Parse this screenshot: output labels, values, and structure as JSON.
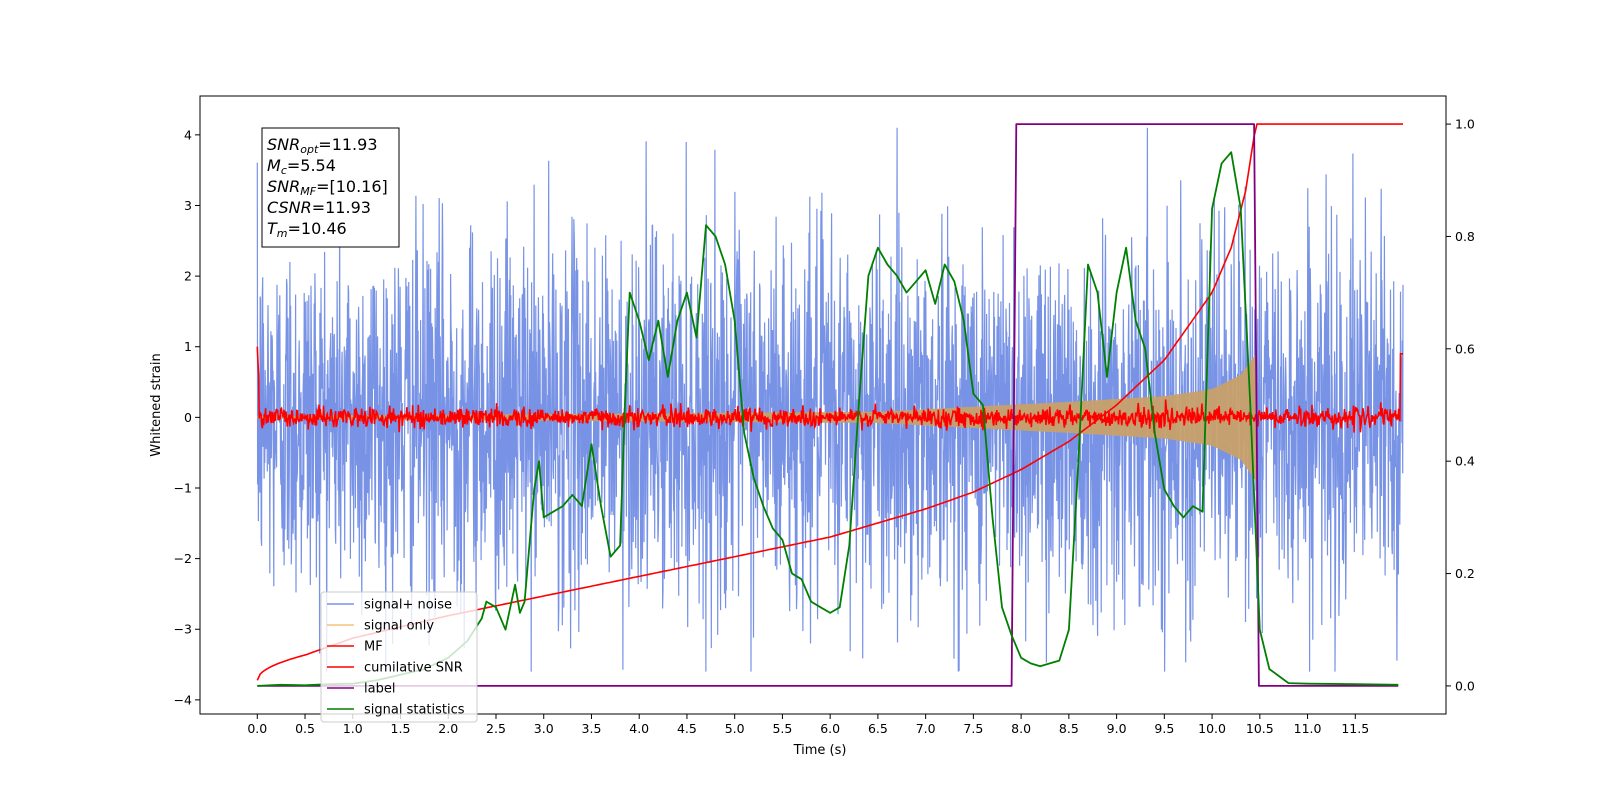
{
  "chart_data": {
    "type": "line",
    "xlabel": "Time (s)",
    "ylabel": "Whitened strain",
    "xlim": [
      -0.6,
      12.45
    ],
    "ylim": [
      -4.2,
      4.55
    ],
    "ylim_right": [
      -0.05,
      1.05
    ],
    "xticks": [
      "0.0",
      "0.5",
      "1.0",
      "1.5",
      "2.0",
      "2.5",
      "3.0",
      "3.5",
      "4.0",
      "4.5",
      "5.0",
      "5.5",
      "6.0",
      "6.5",
      "7.0",
      "7.5",
      "8.0",
      "8.5",
      "9.0",
      "9.5",
      "10.0",
      "10.5",
      "11.0",
      "11.5"
    ],
    "yticks": [
      "4",
      "3",
      "2",
      "1",
      "0",
      "−1",
      "−2",
      "−3",
      "−4"
    ],
    "yticks_right": [
      "1.0",
      "0.8",
      "0.6",
      "0.4",
      "0.2",
      "0.0"
    ],
    "legend_position": "lower-left",
    "info_box": {
      "snr_opt_label": "SNR",
      "snr_opt_sub": "opt",
      "snr_opt_value": "=11.93",
      "mc_label": "M",
      "mc_sub": "c",
      "mc_value": "=5.54",
      "snr_mf_label": "SNR",
      "snr_mf_sub": "MF",
      "snr_mf_value": "=[10.16]",
      "csnr_label": "CSNR",
      "csnr_value": "=11.93",
      "tm_label": "T",
      "tm_sub": "m",
      "tm_value": "=10.46"
    },
    "series": [
      {
        "name": "signal+ noise",
        "color": "#7893e6",
        "axis": "left",
        "noise_amplitude_std": 1.3,
        "x_range": [
          0,
          12
        ]
      },
      {
        "name": "signal only",
        "color": "#f5c27a",
        "axis": "left",
        "envelope_t": [
          0,
          6.5,
          7.5,
          8.5,
          9.5,
          10.0,
          10.3,
          10.46
        ],
        "envelope_amp": [
          0.02,
          0.08,
          0.15,
          0.22,
          0.3,
          0.4,
          0.6,
          0.9
        ]
      },
      {
        "name": "MF",
        "color": "#ff0000",
        "axis": "left",
        "noise_amplitude_std": 0.07,
        "x_range": [
          0,
          12
        ]
      },
      {
        "name": "cumilative SNR",
        "color": "#ff0000",
        "axis": "right",
        "t": [
          0,
          0.5,
          1,
          1.5,
          2,
          3,
          4,
          5,
          6,
          7,
          7.5,
          8,
          8.5,
          9,
          9.5,
          10,
          10.2,
          10.35,
          10.46,
          12
        ],
        "y": [
          0.01,
          0.055,
          0.085,
          0.105,
          0.125,
          0.16,
          0.195,
          0.23,
          0.265,
          0.315,
          0.345,
          0.385,
          0.435,
          0.5,
          0.58,
          0.7,
          0.78,
          0.88,
          1.0,
          1.0
        ]
      },
      {
        "name": "label",
        "color": "#800080",
        "axis": "right",
        "t": [
          0,
          7.9,
          7.95,
          10.44,
          10.49,
          11.95
        ],
        "y": [
          0,
          0,
          1,
          1,
          0,
          0
        ]
      },
      {
        "name": "signal statistics",
        "color": "#008000",
        "axis": "right",
        "t": [
          0,
          0.25,
          0.5,
          0.75,
          1.0,
          1.25,
          1.5,
          1.75,
          2.0,
          2.2,
          2.35,
          2.4,
          2.5,
          2.6,
          2.7,
          2.75,
          2.8,
          2.9,
          2.95,
          3.0,
          3.1,
          3.2,
          3.3,
          3.4,
          3.5,
          3.6,
          3.7,
          3.8,
          3.85,
          3.9,
          4.0,
          4.1,
          4.2,
          4.3,
          4.4,
          4.5,
          4.6,
          4.7,
          4.8,
          4.9,
          5.0,
          5.1,
          5.2,
          5.3,
          5.4,
          5.5,
          5.6,
          5.7,
          5.8,
          5.9,
          6.0,
          6.1,
          6.2,
          6.3,
          6.4,
          6.5,
          6.6,
          6.7,
          6.8,
          6.9,
          7.0,
          7.1,
          7.2,
          7.3,
          7.4,
          7.5,
          7.6,
          7.7,
          7.8,
          7.9,
          8.0,
          8.1,
          8.2,
          8.3,
          8.4,
          8.5,
          8.6,
          8.7,
          8.8,
          8.9,
          9.0,
          9.1,
          9.2,
          9.3,
          9.4,
          9.5,
          9.6,
          9.7,
          9.8,
          9.9,
          10.0,
          10.1,
          10.2,
          10.3,
          10.4,
          10.5,
          10.6,
          10.8,
          11.0,
          11.5,
          11.95
        ],
        "y": [
          0.0,
          0.002,
          0.001,
          0.003,
          0.004,
          0.01,
          0.02,
          0.03,
          0.05,
          0.08,
          0.12,
          0.15,
          0.14,
          0.1,
          0.18,
          0.13,
          0.15,
          0.35,
          0.4,
          0.3,
          0.31,
          0.32,
          0.34,
          0.32,
          0.43,
          0.32,
          0.23,
          0.25,
          0.5,
          0.7,
          0.65,
          0.58,
          0.65,
          0.55,
          0.65,
          0.7,
          0.62,
          0.82,
          0.8,
          0.75,
          0.65,
          0.45,
          0.37,
          0.32,
          0.28,
          0.26,
          0.2,
          0.19,
          0.15,
          0.14,
          0.13,
          0.14,
          0.25,
          0.5,
          0.73,
          0.78,
          0.75,
          0.73,
          0.7,
          0.72,
          0.74,
          0.68,
          0.75,
          0.72,
          0.65,
          0.52,
          0.5,
          0.3,
          0.14,
          0.09,
          0.05,
          0.04,
          0.035,
          0.04,
          0.045,
          0.1,
          0.4,
          0.75,
          0.7,
          0.55,
          0.7,
          0.78,
          0.65,
          0.6,
          0.45,
          0.35,
          0.32,
          0.3,
          0.32,
          0.31,
          0.85,
          0.93,
          0.95,
          0.85,
          0.5,
          0.1,
          0.03,
          0.005,
          0.004,
          0.003,
          0.002
        ]
      }
    ]
  }
}
